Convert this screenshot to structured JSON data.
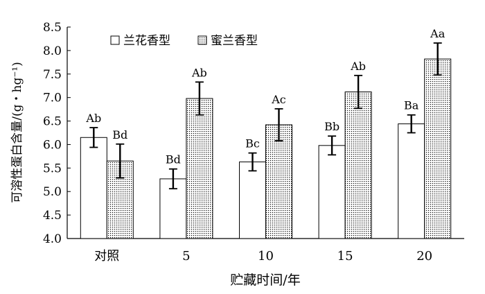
{
  "chart_data": {
    "type": "bar",
    "xlabel": "贮藏时间/年",
    "ylabel": "可溶性蛋白含量/(g・hg⁻¹)",
    "ylim": [
      4.0,
      8.5
    ],
    "yticks": [
      "4.0",
      "4.5",
      "5.0",
      "5.5",
      "6.0",
      "6.5",
      "7.0",
      "7.5",
      "8.0",
      "8.5"
    ],
    "categories": [
      "对照",
      "5",
      "10",
      "15",
      "20"
    ],
    "series": [
      {
        "name": "兰花香型",
        "values": [
          6.15,
          5.27,
          5.63,
          5.98,
          6.44
        ],
        "errors": [
          0.21,
          0.21,
          0.19,
          0.2,
          0.19
        ],
        "labels": [
          "Ab",
          "Bd",
          "Bc",
          "Bb",
          "Ba"
        ],
        "fill": "white"
      },
      {
        "name": "蜜兰香型",
        "values": [
          5.65,
          6.98,
          6.42,
          7.12,
          7.82
        ],
        "errors": [
          0.36,
          0.35,
          0.34,
          0.35,
          0.34
        ],
        "labels": [
          "Bd",
          "Ab",
          "Ac",
          "Ab",
          "Aa"
        ],
        "fill": "dotted"
      }
    ],
    "legend_position": "top-left",
    "grid": false
  }
}
